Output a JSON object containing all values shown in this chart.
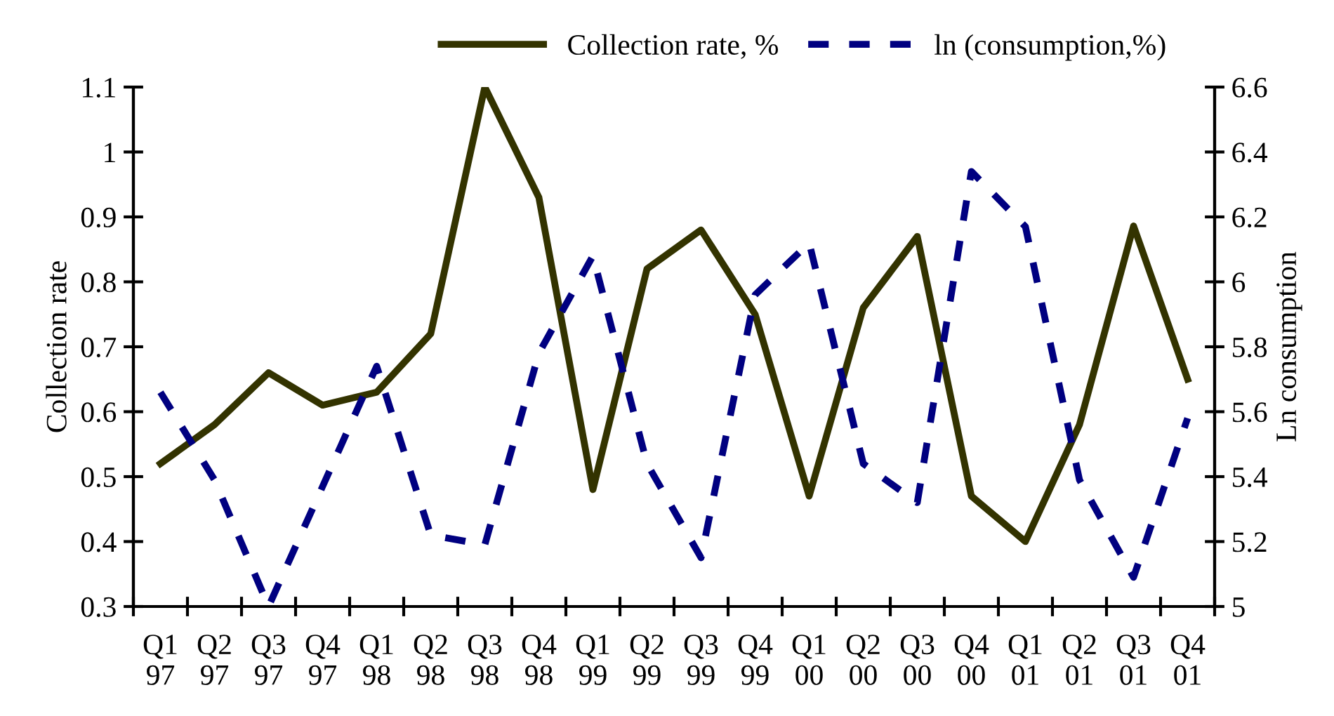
{
  "chart_data": {
    "type": "line",
    "xlabel": null,
    "ylabel": "Collection rate",
    "y2label": "Ln consumption",
    "categories": [
      "Q1\n97",
      "Q2\n97",
      "Q3\n97",
      "Q4\n97",
      "Q1\n98",
      "Q2\n98",
      "Q3\n98",
      "Q4\n98",
      "Q1\n99",
      "Q2\n99",
      "Q3\n99",
      "Q4\n99",
      "Q1\n00",
      "Q2\n00",
      "Q3\n00",
      "Q4\n00",
      "Q1\n01",
      "Q2\n01",
      "Q3\n01",
      "Q4\n01"
    ],
    "series": [
      {
        "name": "Collection rate, %",
        "color": "#333300",
        "line_style": "solid",
        "values": [
          0.52,
          0.58,
          0.66,
          0.61,
          0.63,
          0.72,
          1.1,
          0.93,
          0.48,
          0.82,
          0.88,
          0.75,
          0.47,
          0.76,
          0.87,
          0.47,
          0.4,
          0.58,
          0.886,
          0.65
        ]
      },
      {
        "name": "ln (consumption,%)",
        "color": "#000080",
        "line_style": "dashed",
        "axis": "y2",
        "values": [
          5.66,
          5.39,
          5.0,
          5.37,
          5.74,
          5.22,
          5.19,
          5.78,
          6.08,
          5.44,
          5.15,
          5.96,
          6.12,
          5.44,
          5.32,
          6.34,
          6.17,
          5.39,
          5.09,
          5.58
        ]
      }
    ],
    "ylim": [
      0.3,
      1.1
    ],
    "yticks": [
      0.3,
      0.4,
      0.5,
      0.6,
      0.7,
      0.8,
      0.9,
      1,
      1.1
    ],
    "y2lim": [
      5,
      6.6
    ],
    "y2ticks": [
      5,
      5.2,
      5.4,
      5.6,
      5.8,
      6,
      6.2,
      6.4,
      6.6
    ],
    "grid": false,
    "legend": "top"
  }
}
